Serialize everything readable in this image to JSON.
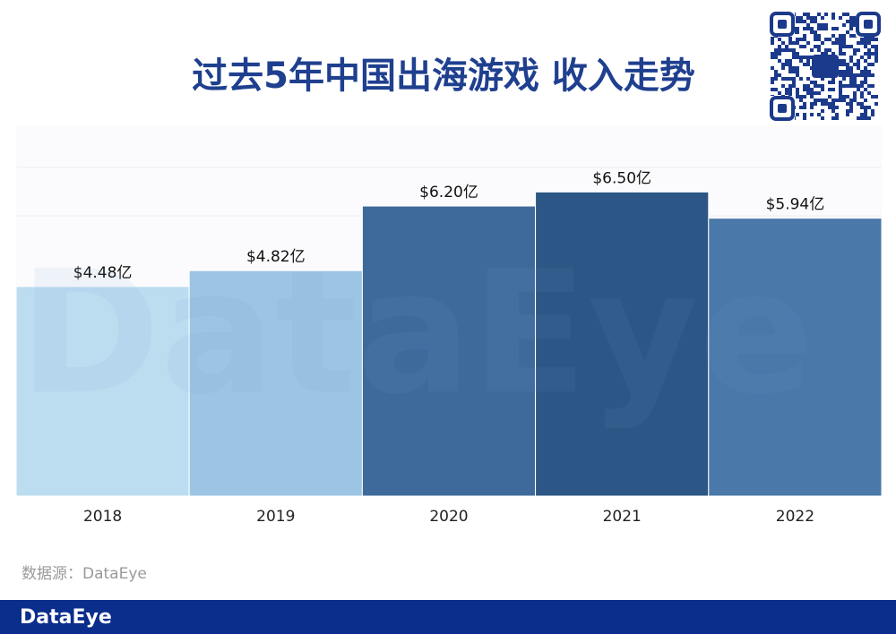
{
  "chart_data": {
    "type": "bar",
    "title": "过去5年中国出海游戏 收入走势",
    "categories": [
      "2018",
      "2019",
      "2020",
      "2021",
      "2022"
    ],
    "values": [
      4.48,
      4.82,
      6.2,
      6.5,
      5.94
    ],
    "value_labels": [
      "$4.48亿",
      "$4.82亿",
      "$6.20亿",
      "$6.50亿",
      "$5.94亿"
    ],
    "colors": [
      "#bcdcf0",
      "#9cc4e3",
      "#3e6a9b",
      "#2c5685",
      "#4a78a9"
    ],
    "ylim": [
      0,
      8
    ],
    "source": "数据源：DataEye",
    "watermark": "DataEye",
    "brand": "DataEye"
  }
}
